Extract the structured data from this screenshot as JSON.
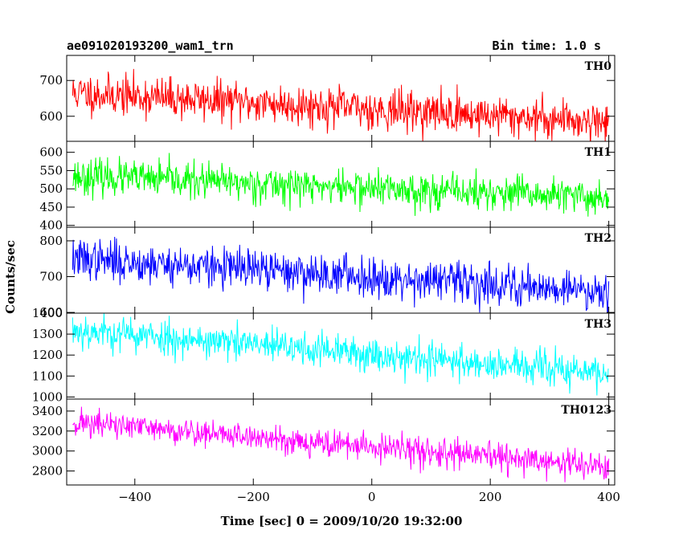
{
  "chart_data": {
    "type": "line",
    "title": "ae091020193200_wam1_trn",
    "subtitle": "Bin time: 1.0 s",
    "xlabel": "Time [sec] 0 = 2009/10/20 19:32:00",
    "ylabel": "Counts/sec",
    "xlim": [
      -515,
      410
    ],
    "x_ticks": [
      -400,
      -200,
      0,
      200,
      400
    ],
    "x_tick_labels": [
      "−400",
      "−200",
      "0",
      "200",
      "400"
    ],
    "x_range_data": [
      -505,
      400
    ],
    "bin_time_s": 1.0,
    "grid": false,
    "panels": [
      {
        "name": "TH0",
        "color": "#ff0000",
        "ylim": [
          530,
          770
        ],
        "y_ticks": [
          600,
          700
        ],
        "y_tick_labels": [
          "600",
          "700"
        ],
        "trend_start": 665,
        "trend_end": 585,
        "noise": 28,
        "seed": 11
      },
      {
        "name": "TH1",
        "color": "#00ff00",
        "ylim": [
          395,
          630
        ],
        "y_ticks": [
          400,
          450,
          500,
          550,
          600
        ],
        "y_tick_labels": [
          "400",
          "450",
          "500",
          "550",
          "600"
        ],
        "trend_start": 535,
        "trend_end": 475,
        "noise": 24,
        "seed": 23
      },
      {
        "name": "TH2",
        "color": "#0000ff",
        "ylim": [
          598,
          838
        ],
        "y_ticks": [
          600,
          700,
          800
        ],
        "y_tick_labels": [
          "600",
          "700",
          "800"
        ],
        "trend_start": 750,
        "trend_end": 660,
        "noise": 28,
        "seed": 37
      },
      {
        "name": "TH3",
        "color": "#00ffff",
        "ylim": [
          990,
          1400
        ],
        "y_ticks": [
          1000,
          1100,
          1200,
          1300,
          1400
        ],
        "y_tick_labels": [
          "1000",
          "1100",
          "1200",
          "1300",
          "1400"
        ],
        "trend_start": 1320,
        "trend_end": 1110,
        "noise": 42,
        "seed": 53
      },
      {
        "name": "TH0123",
        "color": "#ff00ff",
        "ylim": [
          2660,
          3520
        ],
        "y_ticks": [
          2800,
          3000,
          3200,
          3400
        ],
        "y_tick_labels": [
          "2800",
          "3000",
          "3200",
          "3400"
        ],
        "trend_start": 3290,
        "trend_end": 2840,
        "noise": 70,
        "seed": 71
      }
    ]
  }
}
